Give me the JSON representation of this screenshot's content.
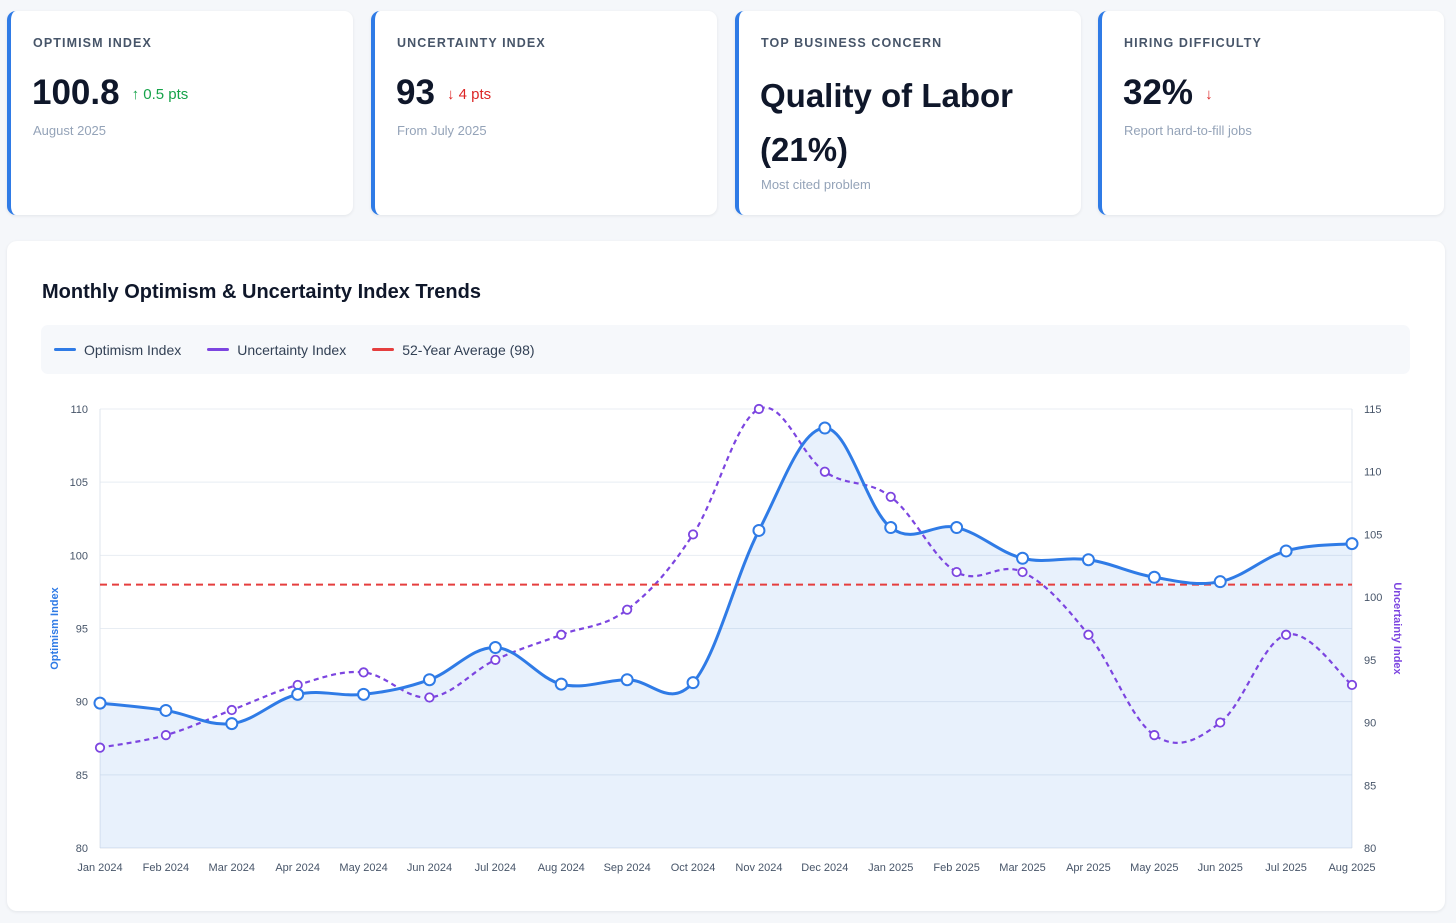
{
  "cards": [
    {
      "label": "OPTIMISM INDEX",
      "value": "100.8",
      "change": "↑ 0.5 pts",
      "direction": "up",
      "sub": "August 2025"
    },
    {
      "label": "UNCERTAINTY INDEX",
      "value": "93",
      "change": "↓ 4 pts",
      "direction": "down",
      "sub": "From July 2025"
    },
    {
      "label": "TOP BUSINESS CONCERN",
      "value": "Quality of Labor (21%)",
      "change": "",
      "direction": "",
      "sub": "Most cited problem"
    },
    {
      "label": "HIRING DIFFICULTY",
      "value": "32%",
      "change": "↓",
      "direction": "down",
      "sub": "Report hard-to-fill jobs"
    }
  ],
  "colors": {
    "accent": "#2f7be6",
    "optimism": "#2f7be6",
    "uncertainty": "#7c45e0",
    "average": "#e53e3e",
    "up": "#16a34a",
    "down": "#dc2626"
  },
  "chart_data": {
    "type": "line",
    "title": "Monthly Optimism & Uncertainty Index Trends",
    "categories": [
      "Jan 2024",
      "Feb 2024",
      "Mar 2024",
      "Apr 2024",
      "May 2024",
      "Jun 2024",
      "Jul 2024",
      "Aug 2024",
      "Sep 2024",
      "Oct 2024",
      "Nov 2024",
      "Dec 2024",
      "Jan 2025",
      "Feb 2025",
      "Mar 2025",
      "Apr 2025",
      "May 2025",
      "Jun 2025",
      "Jul 2025",
      "Aug 2025"
    ],
    "series": [
      {
        "name": "Optimism Index",
        "axis": "left",
        "style": "solid-area",
        "color": "#2f7be6",
        "values": [
          89.9,
          89.4,
          88.5,
          90.5,
          90.5,
          91.5,
          93.7,
          91.2,
          91.5,
          91.3,
          101.7,
          108.7,
          101.9,
          101.9,
          99.8,
          99.7,
          98.5,
          98.2,
          100.3,
          100.8
        ]
      },
      {
        "name": "Uncertainty Index",
        "axis": "right",
        "style": "dashed",
        "color": "#7c45e0",
        "values": [
          88,
          89,
          91,
          93,
          94,
          92,
          95,
          97,
          99,
          105,
          115,
          110,
          108,
          102,
          102,
          97,
          89,
          90,
          97,
          93
        ]
      },
      {
        "name": "52-Year Average (98)",
        "axis": "left",
        "style": "dashed-reference",
        "color": "#e53e3e",
        "value": 98
      }
    ],
    "y_left": {
      "label": "Optimism Index",
      "min": 80,
      "max": 110,
      "ticks": [
        "80",
        "85",
        "90",
        "95",
        "100",
        "105",
        "110"
      ]
    },
    "y_right": {
      "label": "Uncertainty Index",
      "min": 80,
      "max": 115,
      "ticks": [
        "80",
        "85",
        "90",
        "95",
        "100",
        "105",
        "110",
        "115"
      ]
    },
    "grid": true,
    "legend_position": "top"
  }
}
